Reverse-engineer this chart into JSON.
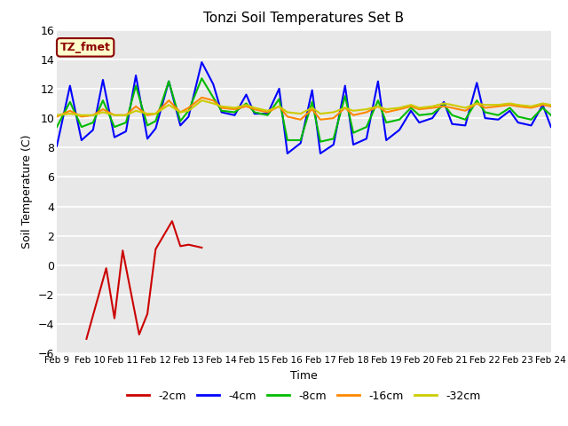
{
  "title": "Tonzi Soil Temperatures Set B",
  "xlabel": "Time",
  "ylabel": "Soil Temperature (C)",
  "ylim": [
    -6,
    16
  ],
  "annotation_label": "TZ_fmet",
  "background_color": "#e8e8e8",
  "fig_background": "#ffffff",
  "x_tick_labels": [
    "Feb 9",
    "Feb 10",
    "Feb 11",
    "Feb 12",
    "Feb 13",
    "Feb 14",
    "Feb 15",
    "Feb 16",
    "Feb 17",
    "Feb 18",
    "Feb 19",
    "Feb 20",
    "Feb 21",
    "Feb 22",
    "Feb 23",
    "Feb 24"
  ],
  "series": {
    "-2cm": {
      "color": "#cc0000",
      "x": [
        9.9,
        10.5,
        10.75,
        11.0,
        11.5,
        11.75,
        12.0,
        12.5,
        12.75,
        13.0,
        13.4
      ],
      "y": [
        -5.0,
        -0.2,
        -3.6,
        1.0,
        -4.7,
        -3.3,
        1.1,
        3.0,
        1.3,
        1.4,
        1.2
      ]
    },
    "-4cm": {
      "color": "#0000ff",
      "x": [
        9.0,
        9.4,
        9.75,
        10.1,
        10.4,
        10.75,
        11.1,
        11.4,
        11.75,
        12.0,
        12.4,
        12.75,
        13.0,
        13.4,
        13.75,
        14.0,
        14.4,
        14.75,
        15.0,
        15.4,
        15.75,
        16.0,
        16.4,
        16.75,
        17.0,
        17.4,
        17.75,
        18.0,
        18.4,
        18.75,
        19.0,
        19.4,
        19.75,
        20.0,
        20.4,
        20.75,
        21.0,
        21.4,
        21.75,
        22.0,
        22.4,
        22.75,
        23.0,
        23.4,
        23.75,
        24.0
      ],
      "y": [
        8.1,
        12.2,
        8.5,
        9.2,
        12.6,
        8.7,
        9.1,
        12.9,
        8.6,
        9.3,
        12.5,
        9.5,
        10.1,
        13.8,
        12.3,
        10.4,
        10.2,
        11.6,
        10.3,
        10.3,
        12.0,
        7.6,
        8.3,
        11.9,
        7.6,
        8.2,
        12.2,
        8.2,
        8.6,
        12.5,
        8.5,
        9.2,
        10.5,
        9.7,
        10.0,
        11.1,
        9.6,
        9.5,
        12.4,
        10.0,
        9.9,
        10.5,
        9.7,
        9.5,
        10.9,
        9.4
      ]
    },
    "-8cm": {
      "color": "#00bb00",
      "x": [
        9.0,
        9.4,
        9.75,
        10.1,
        10.4,
        10.75,
        11.1,
        11.4,
        11.75,
        12.0,
        12.4,
        12.75,
        13.0,
        13.4,
        13.75,
        14.0,
        14.4,
        14.75,
        15.0,
        15.4,
        15.75,
        16.0,
        16.4,
        16.75,
        17.0,
        17.4,
        17.75,
        18.0,
        18.4,
        18.75,
        19.0,
        19.4,
        19.75,
        20.0,
        20.4,
        20.75,
        21.0,
        21.4,
        21.75,
        22.0,
        22.4,
        22.75,
        23.0,
        23.4,
        23.75,
        24.0
      ],
      "y": [
        9.4,
        11.1,
        9.4,
        9.7,
        11.2,
        9.4,
        9.7,
        12.2,
        9.5,
        9.8,
        12.5,
        9.8,
        10.5,
        12.7,
        11.4,
        10.5,
        10.4,
        11.0,
        10.4,
        10.2,
        11.3,
        8.5,
        8.5,
        11.1,
        8.4,
        8.6,
        11.5,
        9.0,
        9.4,
        11.2,
        9.7,
        9.9,
        10.7,
        10.2,
        10.3,
        10.9,
        10.2,
        9.9,
        11.2,
        10.4,
        10.2,
        10.7,
        10.1,
        9.9,
        10.7,
        10.2
      ]
    },
    "-16cm": {
      "color": "#ff8800",
      "x": [
        9.0,
        9.4,
        9.75,
        10.1,
        10.4,
        10.75,
        11.1,
        11.4,
        11.75,
        12.0,
        12.4,
        12.75,
        13.0,
        13.4,
        13.75,
        14.0,
        14.4,
        14.75,
        15.0,
        15.4,
        15.75,
        16.0,
        16.4,
        16.75,
        17.0,
        17.4,
        17.75,
        18.0,
        18.4,
        18.75,
        19.0,
        19.4,
        19.75,
        20.0,
        20.4,
        20.75,
        21.0,
        21.4,
        21.75,
        22.0,
        22.4,
        22.75,
        23.0,
        23.4,
        23.75,
        24.0
      ],
      "y": [
        10.1,
        10.5,
        10.1,
        10.2,
        10.6,
        10.2,
        10.2,
        10.8,
        10.2,
        10.3,
        11.2,
        10.4,
        10.7,
        11.4,
        11.2,
        10.7,
        10.6,
        10.8,
        10.6,
        10.4,
        10.8,
        10.1,
        9.9,
        10.6,
        9.9,
        10.0,
        10.7,
        10.2,
        10.4,
        10.8,
        10.4,
        10.6,
        10.8,
        10.6,
        10.7,
        10.8,
        10.7,
        10.5,
        11.0,
        10.7,
        10.8,
        10.9,
        10.8,
        10.7,
        10.9,
        10.8
      ]
    },
    "-32cm": {
      "color": "#cccc00",
      "x": [
        9.0,
        9.4,
        9.75,
        10.1,
        10.4,
        10.75,
        11.1,
        11.4,
        11.75,
        12.0,
        12.4,
        12.75,
        13.0,
        13.4,
        13.75,
        14.0,
        14.4,
        14.75,
        15.0,
        15.4,
        15.75,
        16.0,
        16.4,
        16.75,
        17.0,
        17.4,
        17.75,
        18.0,
        18.4,
        18.75,
        19.0,
        19.4,
        19.75,
        20.0,
        20.4,
        20.75,
        21.0,
        21.4,
        21.75,
        22.0,
        22.4,
        22.75,
        23.0,
        23.4,
        23.75,
        24.0
      ],
      "y": [
        10.2,
        10.3,
        10.2,
        10.2,
        10.4,
        10.2,
        10.2,
        10.5,
        10.3,
        10.3,
        10.9,
        10.4,
        10.5,
        11.2,
        11.0,
        10.8,
        10.7,
        10.9,
        10.7,
        10.5,
        10.8,
        10.4,
        10.3,
        10.7,
        10.3,
        10.4,
        10.7,
        10.5,
        10.6,
        10.8,
        10.6,
        10.7,
        10.9,
        10.7,
        10.8,
        11.0,
        10.9,
        10.7,
        11.0,
        10.9,
        10.9,
        11.0,
        10.9,
        10.8,
        11.0,
        10.9
      ]
    }
  },
  "yticks": [
    -6,
    -4,
    -2,
    0,
    2,
    4,
    6,
    8,
    10,
    12,
    14,
    16
  ],
  "xticks": [
    9,
    10,
    11,
    12,
    13,
    14,
    15,
    16,
    17,
    18,
    19,
    20,
    21,
    22,
    23,
    24
  ],
  "legend_order": [
    "-2cm",
    "-4cm",
    "-8cm",
    "-16cm",
    "-32cm"
  ],
  "legend_colors": [
    "#cc0000",
    "#0000ff",
    "#00bb00",
    "#ff8800",
    "#cccc00"
  ]
}
